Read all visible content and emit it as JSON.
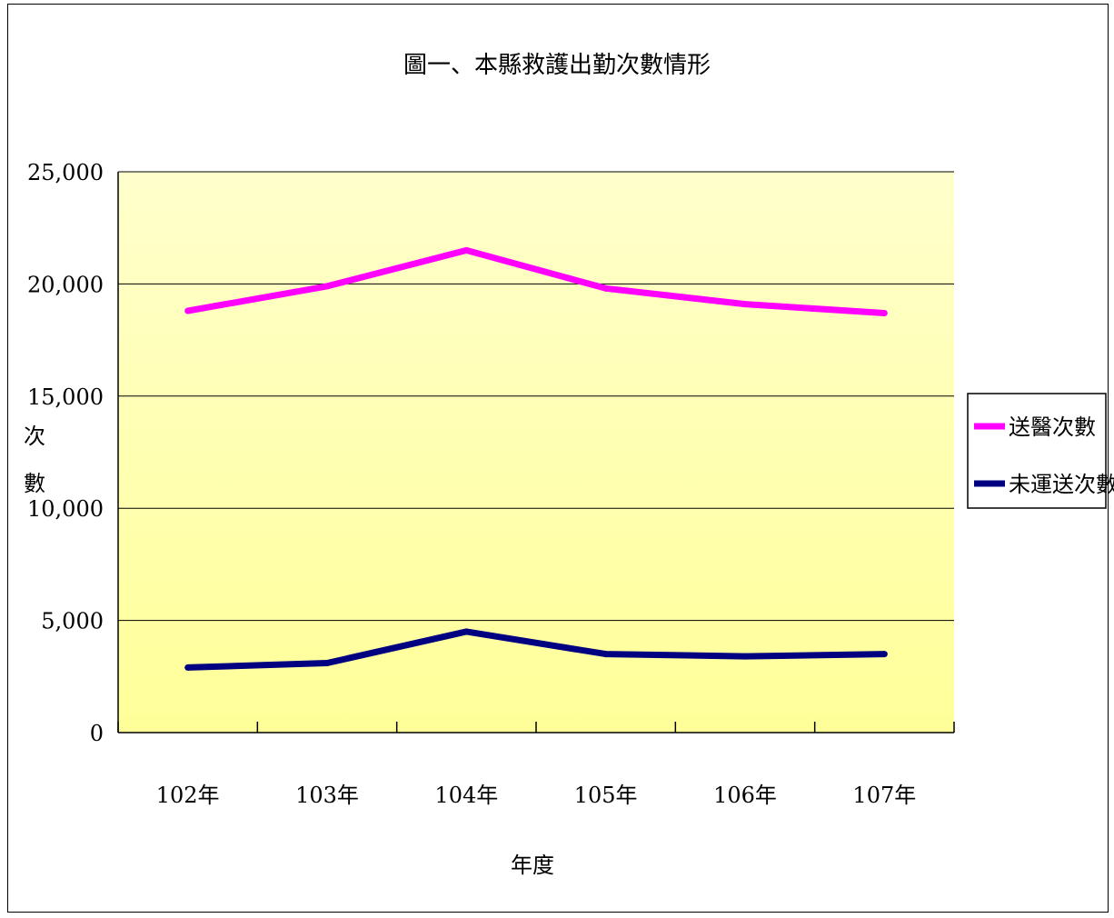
{
  "chart_data": {
    "type": "line",
    "title": "圖一、本縣救護出勤次數情形",
    "xlabel": "年度",
    "ylabel": "次數",
    "categories": [
      "102年",
      "103年",
      "104年",
      "105年",
      "106年",
      "107年"
    ],
    "ylim": [
      0,
      25000
    ],
    "yticks": [
      "0",
      "5,000",
      "10,000",
      "15,000",
      "20,000",
      "25,000"
    ],
    "ytick_values": [
      0,
      5000,
      10000,
      15000,
      20000,
      25000
    ],
    "grid": true,
    "legend_position": "right",
    "series": [
      {
        "name": "送醫次數",
        "color": "#ff00ff",
        "values": [
          18800,
          19900,
          21500,
          19800,
          19100,
          18700
        ]
      },
      {
        "name": "未運送次數",
        "color": "#000080",
        "values": [
          2900,
          3100,
          4500,
          3500,
          3400,
          3500
        ]
      }
    ]
  }
}
